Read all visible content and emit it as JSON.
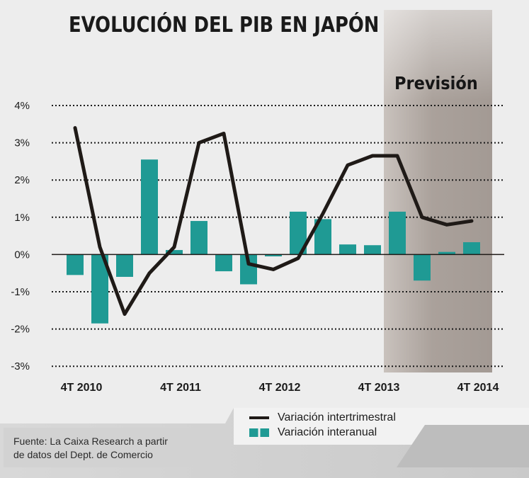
{
  "chart_data": {
    "type": "bar+line",
    "title": "EVOLUCIÓN DEL PIB EN JAPÓN",
    "forecast_label": "Previsión",
    "yticks": [
      "4%",
      "3%",
      "2%",
      "1%",
      "0%",
      "-1%",
      "-2%",
      "-3%"
    ],
    "ylim": [
      -3,
      4
    ],
    "xtick_labels": [
      "4T 2010",
      "4T 2011",
      "4T 2012",
      "4T 2013",
      "4T 2014"
    ],
    "quarters": [
      "4T 2010",
      "1T 2011",
      "2T 2011",
      "3T 2011",
      "4T 2011",
      "1T 2012",
      "2T 2012",
      "3T 2012",
      "4T 2012",
      "1T 2013",
      "2T 2013",
      "3T 2013",
      "4T 2013",
      "1T 2014",
      "2T 2014",
      "3T 2014",
      "4T 2014"
    ],
    "forecast_from": "1T 2014",
    "series": [
      {
        "name": "Variación interanual",
        "type": "bar",
        "color": "#1f9a94",
        "values": [
          -0.55,
          -1.85,
          -0.6,
          2.55,
          0.12,
          0.9,
          -0.45,
          -0.8,
          -0.05,
          1.15,
          0.95,
          0.27,
          0.25,
          1.15,
          -0.7,
          0.07,
          0.33
        ]
      },
      {
        "name": "Variación intertrimestral",
        "type": "line",
        "color": "#1f1a17",
        "values": [
          3.4,
          0.2,
          -1.6,
          -0.5,
          0.2,
          3.0,
          3.25,
          -0.25,
          -0.4,
          -0.1,
          1.1,
          2.4,
          2.65,
          2.65,
          1.0,
          0.8,
          0.9
        ]
      }
    ],
    "legend": {
      "line_label": "Variación intertrimestral",
      "bar_label": "Variación interanual"
    }
  },
  "source": {
    "line1": "Fuente: La Caixa Research a partir",
    "line2": "de datos del Dept. de Comercio"
  },
  "colors": {
    "background": "#ededed",
    "forecast_band": "#b3aba6",
    "bar": "#1f9a94",
    "line": "#1f1a17",
    "footer_band": "#cfcfcf"
  }
}
